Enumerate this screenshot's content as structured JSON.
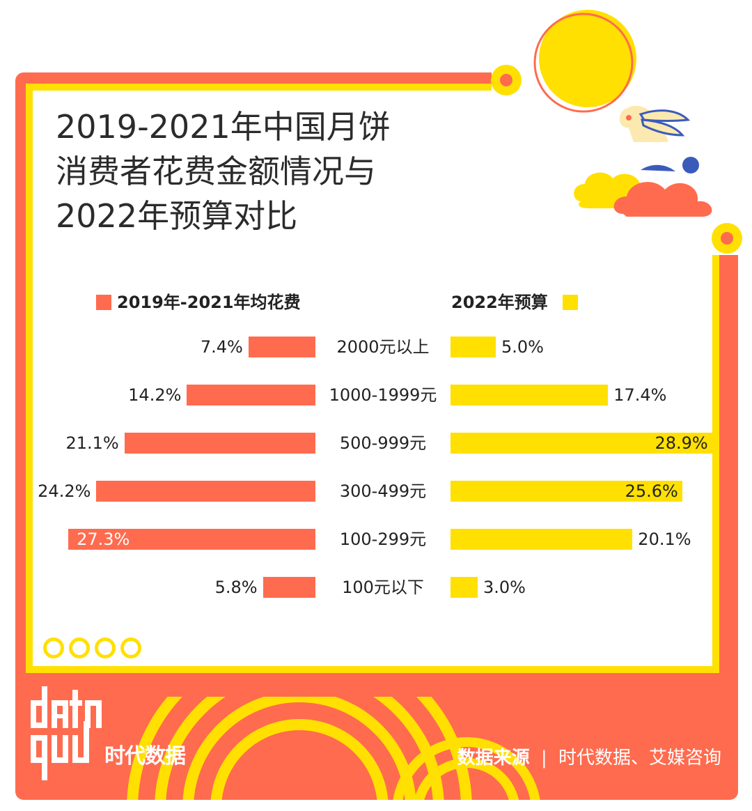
{
  "title": "2019-2021年中国月饼\n消费者花费金额情况与\n2022年预算对比",
  "legend": {
    "left": "2019年-2021年均花费",
    "right": "2022年预算"
  },
  "colors": {
    "left_series": "#FF6B4E",
    "right_series": "#FFE000",
    "frame": "#FF6B4E",
    "accent": "#FFE000"
  },
  "chart_data": {
    "type": "bar",
    "orientation": "horizontal-butterfly",
    "categories": [
      "2000元以上",
      "1000-1999元",
      "500-999元",
      "300-499元",
      "100-299元",
      "100元以下"
    ],
    "series": [
      {
        "name": "2019年-2021年均花费",
        "values": [
          7.4,
          14.2,
          21.1,
          24.2,
          27.3,
          5.8
        ],
        "labels": [
          "7.4%",
          "14.2%",
          "21.1%",
          "24.2%",
          "27.3%",
          "5.8%"
        ]
      },
      {
        "name": "2022年预算",
        "values": [
          5.0,
          17.4,
          28.9,
          25.6,
          20.1,
          3.0
        ],
        "labels": [
          "5.0%",
          "17.4%",
          "28.9%",
          "25.6%",
          "20.1%",
          "3.0%"
        ]
      }
    ],
    "unit": "%",
    "legend_position": "top"
  },
  "footer": {
    "source_label": "数据来源",
    "separator": "|",
    "source_text": "时代数据、艾媒咨询"
  },
  "logo": {
    "brand": "data 时代数据"
  }
}
